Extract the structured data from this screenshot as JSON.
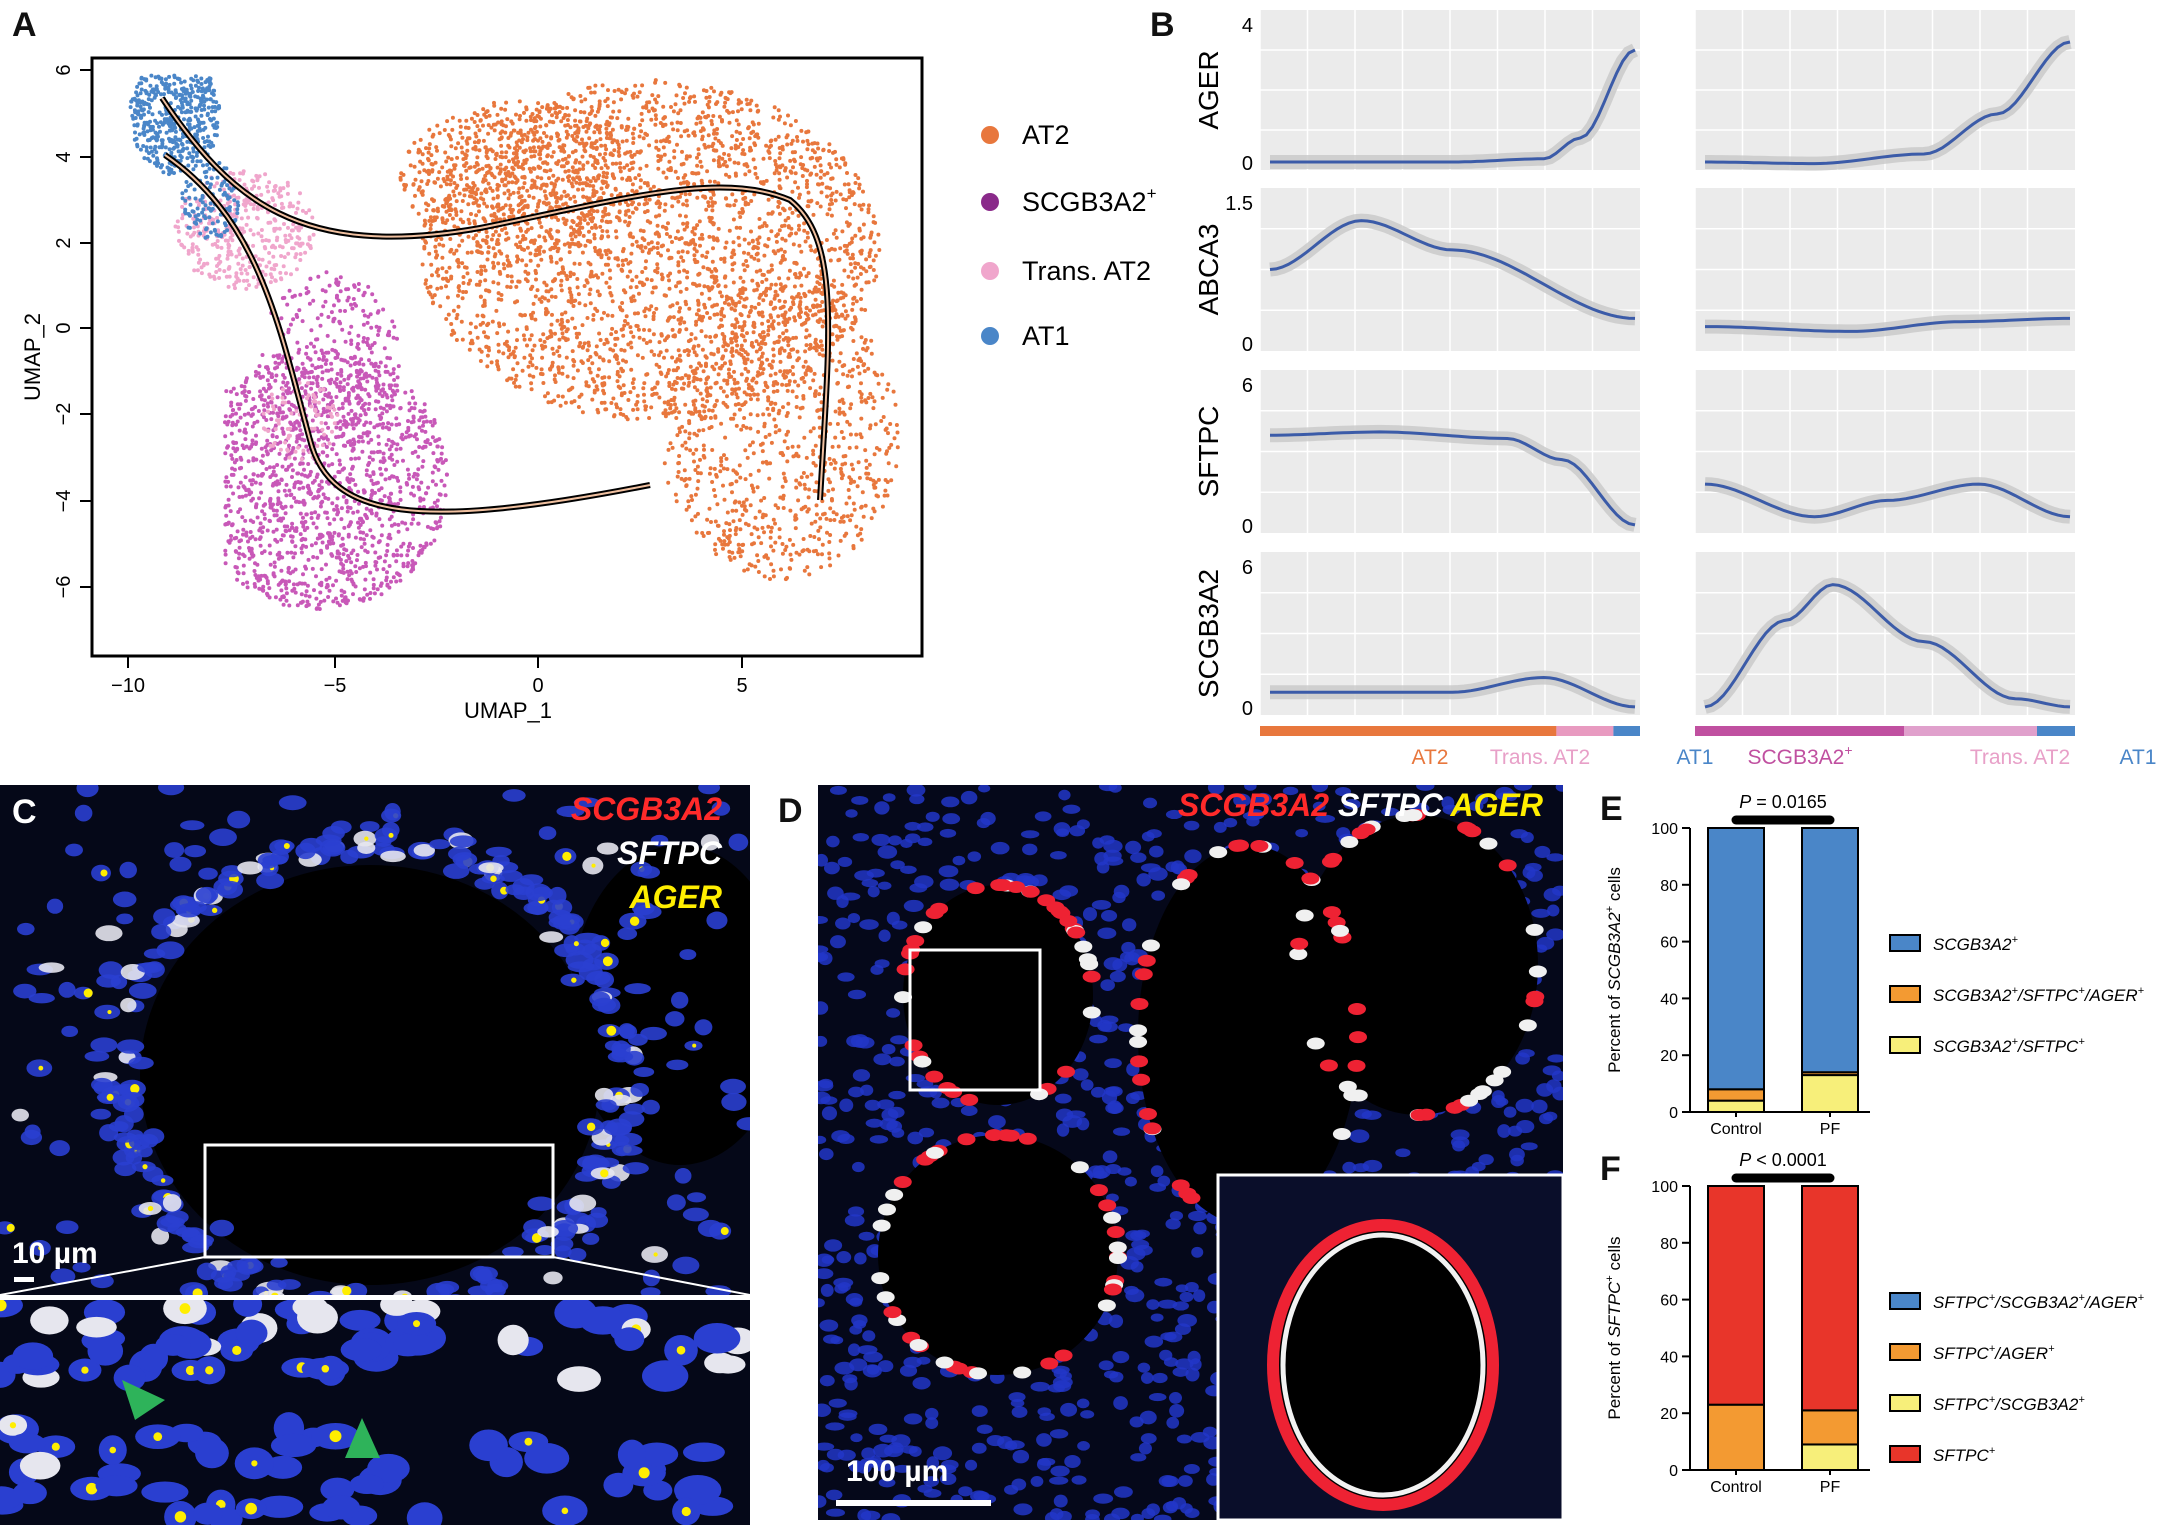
{
  "panels": {
    "A": "A",
    "B": "B",
    "C": "C",
    "D": "D",
    "E": "E",
    "F": "F"
  },
  "umap": {
    "xlabel": "UMAP_1",
    "ylabel": "UMAP_2",
    "xticks": [
      "−10",
      "−5",
      "0",
      "5"
    ],
    "yticks": [
      "6",
      "4",
      "2",
      "0",
      "−2",
      "−4",
      "−6"
    ],
    "legend": [
      {
        "label": "AT2",
        "color": "#e8773d"
      },
      {
        "label": "SCGB3A2",
        "sup": "+",
        "color": "#8a2a8a"
      },
      {
        "label": "Trans. AT2",
        "color": "#f0a6cc"
      },
      {
        "label": "AT1",
        "color": "#4a86c8"
      }
    ]
  },
  "trend": {
    "genes": [
      {
        "name": "AGER",
        "ticks": [
          "4",
          "0"
        ]
      },
      {
        "name": "ABCA3",
        "ticks": [
          "1.5",
          "0"
        ]
      },
      {
        "name": "SFTPC",
        "ticks": [
          "6",
          "0"
        ]
      },
      {
        "name": "SCGB3A2",
        "ticks": [
          "6",
          "0"
        ]
      }
    ],
    "left_axis": {
      "labels": [
        {
          "text": "AT2",
          "color": "#e8773d"
        },
        {
          "text": "Trans. AT2",
          "color": "#e8a0c8"
        },
        {
          "text": "AT1",
          "color": "#4a86c8"
        }
      ]
    },
    "right_axis": {
      "labels": [
        {
          "text": "SCGB3A2",
          "sup": "+",
          "color": "#c050a0"
        },
        {
          "text": "Trans. AT2",
          "color": "#e8a0c8"
        },
        {
          "text": "AT1",
          "color": "#4a86c8"
        }
      ]
    }
  },
  "micro_c": {
    "labels": [
      {
        "text": "SCGB3A2",
        "color": "#ff2a2a"
      },
      {
        "text": "SFTPC",
        "color": "#ffffff"
      },
      {
        "text": "AGER",
        "color": "#ffee00"
      }
    ],
    "scale": "10 µm"
  },
  "micro_d": {
    "labels": [
      {
        "text": "SCGB3A2",
        "color": "#ff2a2a"
      },
      {
        "text": "SFTPC",
        "color": "#ffffff"
      },
      {
        "text": "AGER",
        "color": "#ffee00"
      }
    ],
    "scale": "100 µm"
  },
  "chart_data": [
    {
      "type": "bar",
      "stacked": true,
      "title": "",
      "ylabel_pre": "Percent of ",
      "ylabel_gene": "SCGB3A2",
      "ylabel_sup": "+",
      "ylabel_post": " cells",
      "ylim": [
        0,
        100
      ],
      "yticks": [
        "0",
        "20",
        "40",
        "60",
        "80",
        "100"
      ],
      "categories": [
        "Control",
        "PF"
      ],
      "pvalue": "= 0.0165",
      "series": [
        {
          "name": "SCGB3A2+/SFTPC+",
          "color": "#f7ef7a",
          "values": [
            4,
            13
          ]
        },
        {
          "name": "SCGB3A2+/SFTPC+/AGER+",
          "color": "#f39a32",
          "values": [
            4,
            1
          ]
        },
        {
          "name": "SCGB3A2+",
          "color": "#4a86c8",
          "values": [
            92,
            86
          ]
        }
      ],
      "legend": [
        {
          "text": "SCGB3A2",
          "sup": "+",
          "color": "#4a86c8"
        },
        {
          "text": "SCGB3A2",
          "sup": "+",
          "text2": "/SFTPC",
          "sup2": "+",
          "text3": "/AGER",
          "sup3": "+",
          "color": "#f39a32"
        },
        {
          "text": "SCGB3A2",
          "sup": "+",
          "text2": "/SFTPC",
          "sup2": "+",
          "color": "#f7ef7a"
        }
      ]
    },
    {
      "type": "bar",
      "stacked": true,
      "title": "",
      "ylabel_pre": "Percent of ",
      "ylabel_gene": "SFTPC",
      "ylabel_sup": "+",
      "ylabel_post": " cells",
      "ylim": [
        0,
        100
      ],
      "yticks": [
        "0",
        "20",
        "40",
        "60",
        "80",
        "100"
      ],
      "categories": [
        "Control",
        "PF"
      ],
      "pvalue": "< 0.0001",
      "series": [
        {
          "name": "SFTPC+/SCGB3A2+",
          "color": "#f7ef7a",
          "values": [
            0,
            9
          ]
        },
        {
          "name": "SFTPC+/AGER+",
          "color": "#f39a32",
          "values": [
            23,
            12
          ]
        },
        {
          "name": "SFTPC+/SCGB3A2+/AGER+",
          "color": "#4a86c8",
          "values": [
            0,
            0
          ]
        },
        {
          "name": "SFTPC+",
          "color": "#e8352a",
          "values": [
            77,
            79
          ]
        }
      ],
      "legend": [
        {
          "text": "SFTPC",
          "sup": "+",
          "text2": "/SCGB3A2",
          "sup2": "+",
          "text3": "/AGER",
          "sup3": "+",
          "color": "#4a86c8"
        },
        {
          "text": "SFTPC",
          "sup": "+",
          "text2": "/AGER",
          "sup2": "+",
          "color": "#f39a32"
        },
        {
          "text": "SFTPC",
          "sup": "+",
          "text2": "/SCGB3A2",
          "sup2": "+",
          "color": "#f7ef7a"
        },
        {
          "text": "SFTPC",
          "sup": "+",
          "color": "#e8352a"
        }
      ]
    }
  ]
}
